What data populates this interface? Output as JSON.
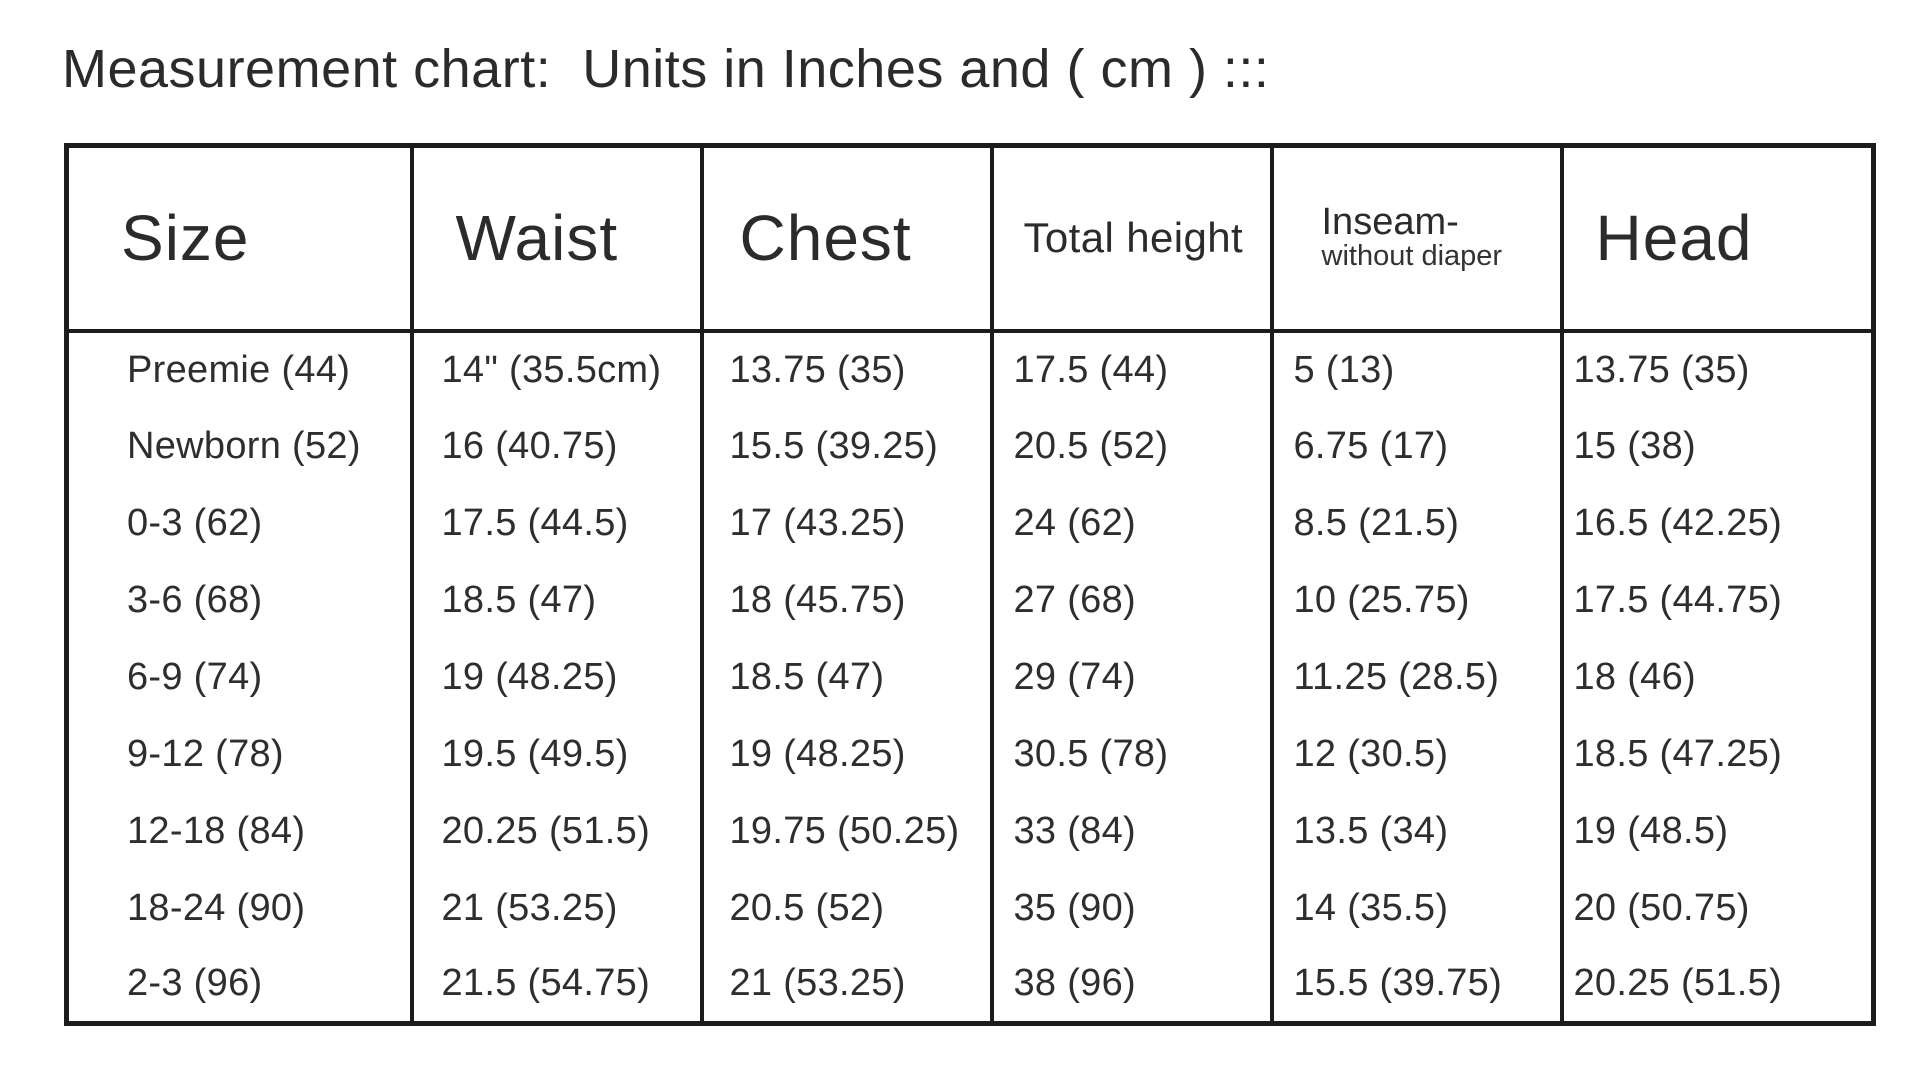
{
  "page": {
    "title": "Measurement chart:  Units in Inches and ( cm ) :::"
  },
  "colors": {
    "background": "#ffffff",
    "border": "#1c1c1c",
    "text": "#2b2b2b"
  },
  "chart_data": {
    "type": "table",
    "title": "Measurement chart:  Units in Inches and ( cm ) :::",
    "units": "Inches and (cm)",
    "headers": [
      {
        "label": "Size"
      },
      {
        "label": "Waist"
      },
      {
        "label": "Chest"
      },
      {
        "label": "Total height"
      },
      {
        "label": "Inseam-",
        "sub": "without diaper"
      },
      {
        "label": "Head"
      }
    ],
    "rows": [
      [
        "Preemie (44)",
        "14\" (35.5cm)",
        "13.75 (35)",
        "17.5 (44)",
        "5 (13)",
        "13.75 (35)"
      ],
      [
        "Newborn (52)",
        "16 (40.75)",
        "15.5 (39.25)",
        "20.5 (52)",
        "6.75 (17)",
        "15 (38)"
      ],
      [
        "0-3 (62)",
        "17.5 (44.5)",
        "17 (43.25)",
        "24 (62)",
        "8.5 (21.5)",
        "16.5 (42.25)"
      ],
      [
        "3-6 (68)",
        "18.5 (47)",
        "18 (45.75)",
        "27 (68)",
        "10 (25.75)",
        "17.5 (44.75)"
      ],
      [
        "6-9 (74)",
        "19 (48.25)",
        "18.5 (47)",
        "29 (74)",
        "11.25 (28.5)",
        "18 (46)"
      ],
      [
        "9-12 (78)",
        "19.5 (49.5)",
        "19 (48.25)",
        "30.5 (78)",
        "12 (30.5)",
        "18.5 (47.25)"
      ],
      [
        "12-18 (84)",
        "20.25 (51.5)",
        "19.75 (50.25)",
        "33 (84)",
        "13.5 (34)",
        "19 (48.5)"
      ],
      [
        "18-24 (90)",
        "21 (53.25)",
        "20.5 (52)",
        "35 (90)",
        "14 (35.5)",
        "20 (50.75)"
      ],
      [
        "2-3 (96)",
        "21.5 (54.75)",
        "21 (53.25)",
        "38 (96)",
        "15.5 (39.75)",
        "20.25 (51.5)"
      ]
    ]
  }
}
